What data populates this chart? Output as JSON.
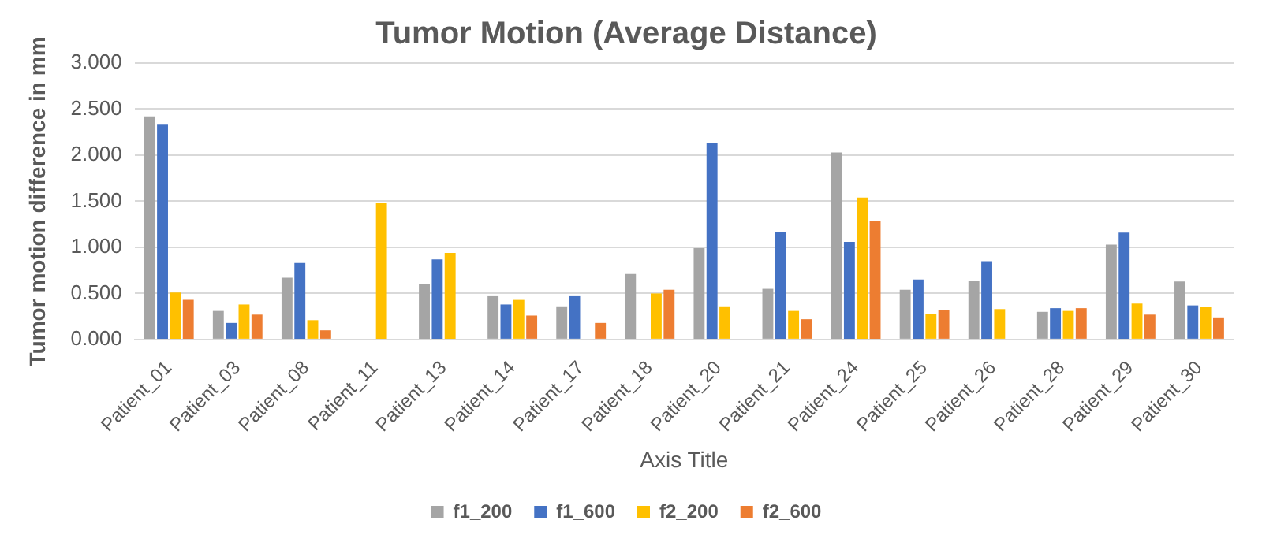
{
  "chart_data": {
    "type": "bar",
    "title": "Tumor Motion (Average Distance)",
    "xlabel": "Axis Title",
    "ylabel": "Tumor motion difference in mm",
    "categories": [
      "Patient_01",
      "Patient_03",
      "Patient_08",
      "Patient_11",
      "Patient_13",
      "Patient_14",
      "Patient_17",
      "Patient_18",
      "Patient_20",
      "Patient_21",
      "Patient_24",
      "Patient_25",
      "Patient_26",
      "Patient_28",
      "Patient_29",
      "Patient_30"
    ],
    "series": [
      {
        "name": "f1_200",
        "color": "#a5a5a5",
        "values": [
          2.42,
          0.31,
          0.67,
          null,
          0.6,
          0.47,
          0.36,
          0.71,
          0.99,
          0.55,
          2.03,
          0.54,
          0.64,
          0.3,
          1.03,
          0.63
        ]
      },
      {
        "name": "f1_600",
        "color": "#4472c4",
        "values": [
          2.33,
          0.18,
          0.83,
          null,
          0.87,
          0.38,
          0.47,
          null,
          2.13,
          1.17,
          1.06,
          0.65,
          0.85,
          0.34,
          1.16,
          0.37
        ]
      },
      {
        "name": "f2_200",
        "color": "#ffc000",
        "values": [
          0.51,
          0.38,
          0.21,
          1.48,
          0.94,
          0.43,
          null,
          0.5,
          0.36,
          0.31,
          1.54,
          0.28,
          0.33,
          0.31,
          0.39,
          0.35
        ]
      },
      {
        "name": "f2_600",
        "color": "#ed7d31",
        "values": [
          0.43,
          0.27,
          0.1,
          null,
          null,
          0.26,
          0.18,
          0.54,
          null,
          0.22,
          1.29,
          0.32,
          null,
          0.34,
          0.27,
          0.24
        ]
      }
    ],
    "ylim": [
      0,
      3
    ],
    "yticks": [
      {
        "value": 0,
        "label": "0.000"
      },
      {
        "value": 0.5,
        "label": "0.500"
      },
      {
        "value": 1,
        "label": "1.000"
      },
      {
        "value": 1.5,
        "label": "1.500"
      },
      {
        "value": 2,
        "label": "2.000"
      },
      {
        "value": 2.5,
        "label": "2.500"
      },
      {
        "value": 3,
        "label": "3.000"
      }
    ],
    "grid": "y",
    "legend": "bottom"
  }
}
